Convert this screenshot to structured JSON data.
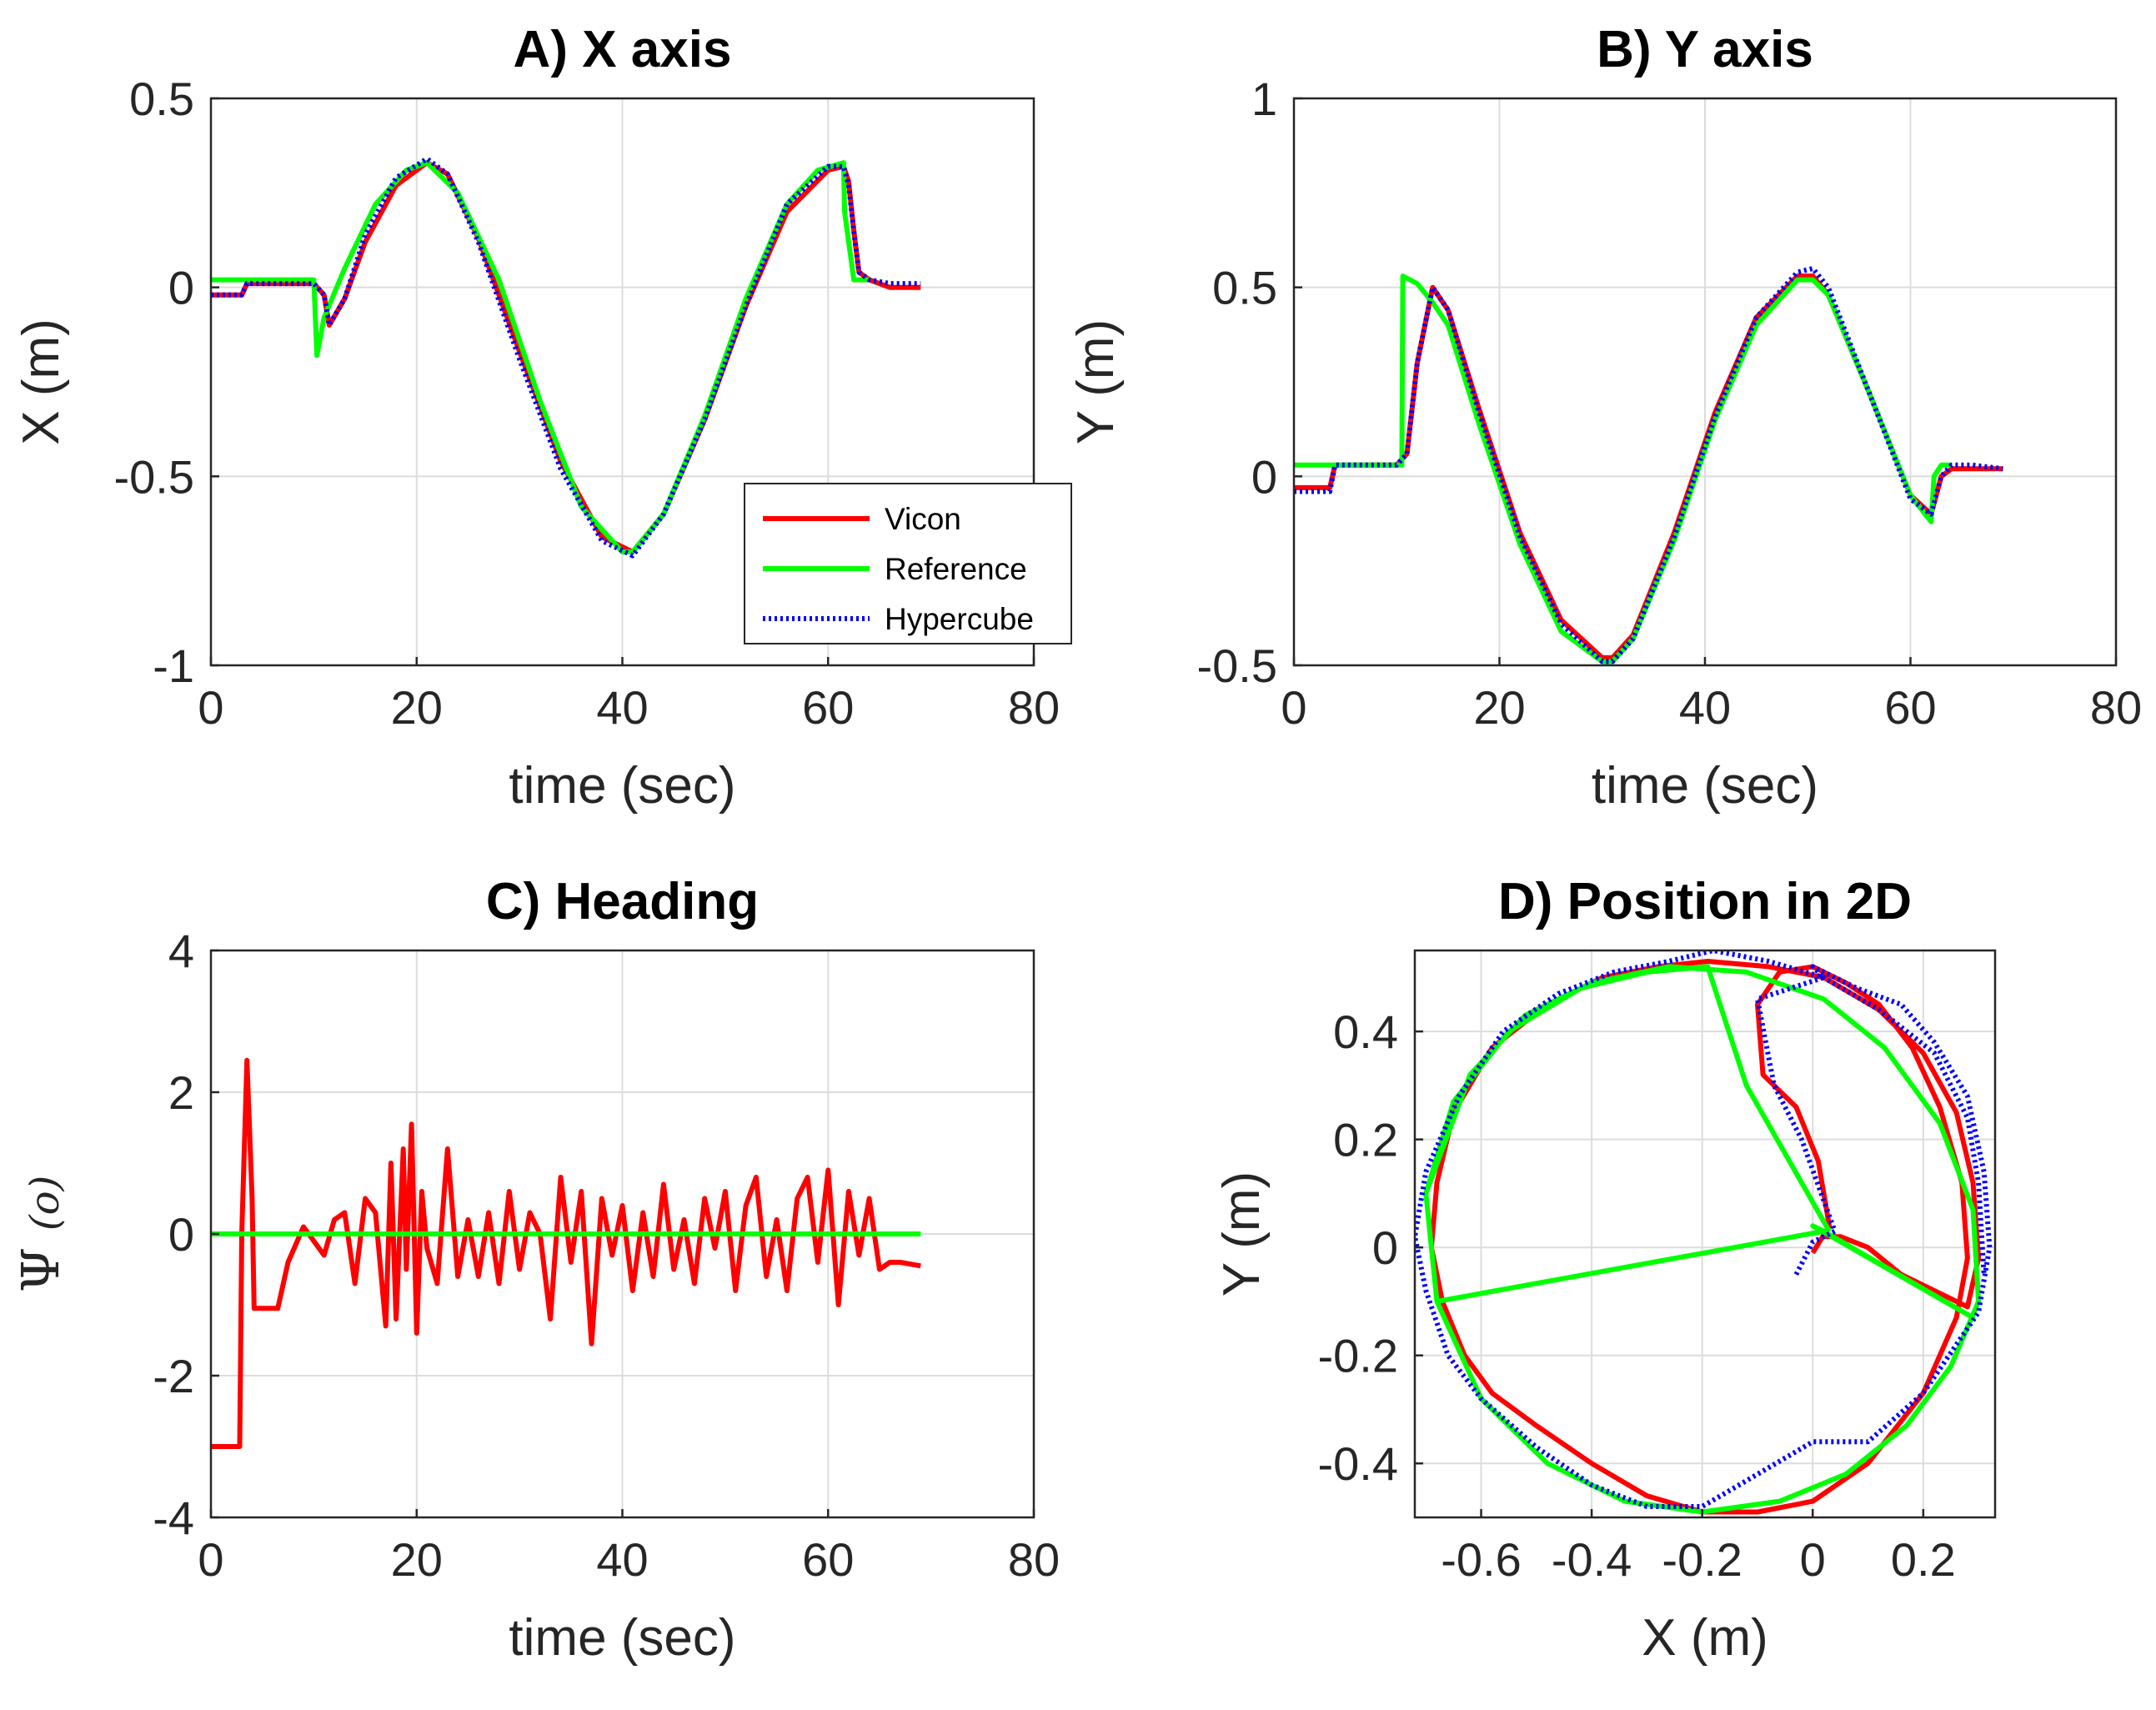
{
  "chart_data": [
    {
      "type": "line",
      "title": "A) X axis",
      "xlabel": "time (sec)",
      "ylabel": "X (m)",
      "xlim": [
        0,
        80
      ],
      "ylim": [
        -1,
        0.5
      ],
      "xticks": [
        0,
        20,
        40,
        60,
        80
      ],
      "yticks": [
        -1,
        -0.5,
        0,
        0.5
      ],
      "xtick_labels": [
        "0",
        "20",
        "40",
        "60",
        "80"
      ],
      "ytick_labels": [
        "-1",
        "-0.5",
        "0",
        "0.5"
      ],
      "grid": true,
      "legend": {
        "position": "bottom-right",
        "entries": [
          "Vicon",
          "Reference",
          "Hypercube"
        ]
      },
      "series": [
        {
          "name": "Vicon",
          "color": "#ff0000",
          "style": "solid",
          "x": [
            0,
            3,
            3.5,
            10,
            11,
            11.5,
            13,
            15,
            18,
            21,
            23,
            26,
            30,
            34,
            38,
            41,
            44,
            48,
            52,
            56,
            60,
            61.5,
            62,
            62.5,
            63,
            64,
            66,
            69
          ],
          "y": [
            -0.02,
            -0.02,
            0.01,
            0.01,
            -0.02,
            -0.1,
            -0.03,
            0.12,
            0.27,
            0.33,
            0.3,
            0.13,
            -0.17,
            -0.46,
            -0.66,
            -0.7,
            -0.6,
            -0.35,
            -0.05,
            0.2,
            0.31,
            0.32,
            0.28,
            0.15,
            0.04,
            0.02,
            0.0,
            0.0
          ]
        },
        {
          "name": "Reference",
          "color": "#00ff00",
          "style": "solid",
          "x": [
            0,
            10,
            10.3,
            11,
            13,
            16,
            19,
            21,
            24,
            28,
            32,
            36,
            40,
            41,
            44,
            48,
            52,
            56,
            59,
            61.5,
            61.6,
            62.5,
            63,
            64
          ],
          "y": [
            0.02,
            0.02,
            -0.18,
            -0.08,
            0.05,
            0.22,
            0.31,
            0.33,
            0.25,
            0.02,
            -0.3,
            -0.58,
            -0.7,
            -0.7,
            -0.6,
            -0.34,
            -0.03,
            0.22,
            0.31,
            0.33,
            0.2,
            0.02,
            0.02,
            0.02
          ]
        },
        {
          "name": "Hypercube",
          "color": "#0000ff",
          "style": "dotted",
          "x": [
            0,
            3,
            3.5,
            10,
            11,
            11.5,
            13,
            15,
            18,
            21,
            23,
            26,
            30,
            34,
            38,
            41,
            44,
            48,
            52,
            56,
            60,
            61.5,
            62,
            62.5,
            63,
            64,
            66,
            69
          ],
          "y": [
            -0.02,
            -0.02,
            0.01,
            0.01,
            -0.02,
            -0.1,
            -0.03,
            0.14,
            0.29,
            0.34,
            0.3,
            0.12,
            -0.19,
            -0.48,
            -0.67,
            -0.71,
            -0.6,
            -0.35,
            -0.05,
            0.22,
            0.32,
            0.32,
            0.27,
            0.15,
            0.04,
            0.02,
            0.01,
            0.01
          ]
        }
      ]
    },
    {
      "type": "line",
      "title": "B) Y axis",
      "xlabel": "time (sec)",
      "ylabel": "Y (m)",
      "xlim": [
        0,
        80
      ],
      "ylim": [
        -0.5,
        1
      ],
      "xticks": [
        0,
        20,
        40,
        60,
        80
      ],
      "yticks": [
        -0.5,
        0,
        0.5,
        1
      ],
      "xtick_labels": [
        "0",
        "20",
        "40",
        "60",
        "80"
      ],
      "ytick_labels": [
        "-0.5",
        "0",
        "0.5",
        "1"
      ],
      "grid": true,
      "series": [
        {
          "name": "Vicon",
          "color": "#ff0000",
          "style": "solid",
          "x": [
            0,
            3.5,
            4,
            10,
            11,
            12,
            13.5,
            15,
            18,
            22,
            26,
            30,
            31,
            33,
            37,
            41,
            45,
            49,
            50.5,
            52,
            56,
            60,
            62,
            63,
            64,
            66,
            69
          ],
          "y": [
            -0.03,
            -0.03,
            0.03,
            0.03,
            0.06,
            0.3,
            0.5,
            0.44,
            0.18,
            -0.15,
            -0.38,
            -0.48,
            -0.48,
            -0.42,
            -0.15,
            0.17,
            0.42,
            0.53,
            0.53,
            0.48,
            0.22,
            -0.05,
            -0.1,
            0.0,
            0.02,
            0.02,
            0.02
          ]
        },
        {
          "name": "Reference",
          "color": "#00ff00",
          "style": "solid",
          "x": [
            0,
            10.5,
            10.6,
            12,
            13.5,
            15,
            18,
            22,
            26,
            30,
            31,
            33,
            37,
            41,
            45,
            49,
            50.5,
            52,
            56,
            60,
            62,
            62.3,
            63,
            64
          ],
          "y": [
            0.03,
            0.03,
            0.53,
            0.51,
            0.46,
            0.4,
            0.14,
            -0.18,
            -0.41,
            -0.49,
            -0.49,
            -0.43,
            -0.17,
            0.15,
            0.4,
            0.52,
            0.52,
            0.48,
            0.22,
            -0.05,
            -0.12,
            0.0,
            0.03,
            0.03
          ]
        },
        {
          "name": "Hypercube",
          "color": "#0000ff",
          "style": "dotted",
          "x": [
            0,
            3.5,
            4,
            10,
            11,
            12,
            13.5,
            15,
            18,
            22,
            26,
            30,
            31,
            33,
            37,
            41,
            45,
            49,
            50.5,
            52,
            56,
            60,
            62,
            63,
            64,
            66,
            69
          ],
          "y": [
            -0.04,
            -0.04,
            0.03,
            0.03,
            0.06,
            0.3,
            0.5,
            0.44,
            0.17,
            -0.16,
            -0.39,
            -0.49,
            -0.49,
            -0.43,
            -0.16,
            0.16,
            0.42,
            0.54,
            0.55,
            0.5,
            0.22,
            -0.06,
            -0.1,
            0.0,
            0.03,
            0.03,
            0.02
          ]
        }
      ]
    },
    {
      "type": "line",
      "title": "C) Heading",
      "xlabel": "time (sec)",
      "ylabel_symbol": "Ψ",
      "ylabel_unit": "(o)",
      "xlim": [
        0,
        80
      ],
      "ylim": [
        -4,
        4
      ],
      "xticks": [
        0,
        20,
        40,
        60,
        80
      ],
      "yticks": [
        -4,
        -2,
        0,
        2,
        4
      ],
      "xtick_labels": [
        "0",
        "20",
        "40",
        "60",
        "80"
      ],
      "ytick_labels": [
        "-4",
        "-2",
        "0",
        "2",
        "4"
      ],
      "grid": true,
      "series": [
        {
          "name": "Vicon",
          "color": "#ff0000",
          "style": "solid",
          "x": [
            0,
            2.8,
            3.0,
            3.5,
            4.0,
            4.2,
            6.5,
            7.5,
            9,
            10,
            11,
            12,
            13,
            14,
            15,
            16,
            17,
            17.5,
            18,
            18.7,
            19,
            19.5,
            20,
            20.5,
            21,
            22,
            23,
            24,
            25,
            26,
            27,
            28,
            29,
            30,
            31,
            32,
            33,
            34,
            35,
            36,
            37,
            38,
            39,
            40,
            41,
            42,
            43,
            44,
            45,
            46,
            47,
            48,
            49,
            50,
            51,
            52,
            53,
            54,
            55,
            56,
            57,
            58,
            59,
            60,
            61,
            62,
            63,
            64,
            65,
            66,
            67,
            69
          ],
          "y": [
            -3,
            -3,
            0.0,
            2.45,
            0.5,
            -1.05,
            -1.05,
            -0.4,
            0.1,
            -0.1,
            -0.3,
            0.2,
            0.3,
            -0.7,
            0.5,
            0.3,
            -1.3,
            1.0,
            -1.2,
            1.2,
            -0.5,
            1.55,
            -1.4,
            0.6,
            -0.2,
            -0.7,
            1.2,
            -0.6,
            0.2,
            -0.6,
            0.3,
            -0.7,
            0.6,
            -0.5,
            0.3,
            0.0,
            -1.2,
            0.8,
            -0.4,
            0.6,
            -1.55,
            0.5,
            -0.3,
            0.4,
            -0.8,
            0.3,
            -0.6,
            0.7,
            -0.5,
            0.2,
            -0.7,
            0.5,
            -0.2,
            0.6,
            -0.8,
            0.4,
            0.8,
            -0.6,
            0.2,
            -0.8,
            0.5,
            0.8,
            -0.4,
            0.9,
            -1.0,
            0.6,
            -0.3,
            0.5,
            -0.5,
            -0.4,
            -0.4,
            -0.45
          ]
        },
        {
          "name": "Reference",
          "color": "#00ff00",
          "style": "solid",
          "x": [
            0,
            69
          ],
          "y": [
            0,
            0
          ]
        }
      ]
    },
    {
      "type": "line",
      "title": "D) Position in 2D",
      "xlabel": "X (m)",
      "ylabel": "Y (m)",
      "xlim": [
        -0.72,
        0.33
      ],
      "ylim": [
        -0.5,
        0.55
      ],
      "xticks": [
        -0.6,
        -0.4,
        -0.2,
        0,
        0.2
      ],
      "yticks": [
        -0.4,
        -0.2,
        0,
        0.2,
        0.4
      ],
      "xtick_labels": [
        "-0.6",
        "-0.4",
        "-0.2",
        "0",
        "0.2"
      ],
      "ytick_labels": [
        "-0.4",
        "-0.2",
        "0",
        "0.2",
        "0.4"
      ],
      "grid": true,
      "series": [
        {
          "name": "Vicon",
          "color": "#ff0000",
          "style": "solid",
          "x": [
            0.0,
            0.03,
            0.01,
            -0.03,
            -0.09,
            -0.1,
            -0.06,
            0.0,
            0.06,
            0.12,
            0.18,
            0.23,
            0.27,
            0.28,
            0.26,
            0.2,
            0.1,
            0.0,
            -0.1,
            -0.2,
            -0.3,
            -0.4,
            -0.5,
            -0.58,
            -0.63,
            -0.67,
            -0.69,
            -0.68,
            -0.65,
            -0.58,
            -0.48,
            -0.38,
            -0.28,
            -0.19,
            -0.08,
            0.02,
            0.12,
            0.2,
            0.26,
            0.29,
            0.3,
            0.28,
            0.16,
            0.1,
            0.05,
            0.02
          ],
          "x_note": "",
          "y": [
            -0.01,
            0.04,
            0.16,
            0.26,
            0.32,
            0.45,
            0.51,
            0.52,
            0.49,
            0.45,
            0.37,
            0.26,
            0.12,
            -0.02,
            -0.13,
            -0.27,
            -0.4,
            -0.47,
            -0.49,
            -0.49,
            -0.46,
            -0.4,
            -0.33,
            -0.27,
            -0.2,
            -0.1,
            0.0,
            0.12,
            0.25,
            0.37,
            0.45,
            0.5,
            0.52,
            0.53,
            0.52,
            0.5,
            0.44,
            0.36,
            0.25,
            0.12,
            -0.02,
            -0.11,
            -0.05,
            0.0,
            0.02,
            0.02
          ]
        },
        {
          "name": "Reference",
          "color": "#00ff00",
          "style": "solid",
          "x": [
            0.03,
            -0.12,
            -0.19,
            -0.3,
            -0.42,
            -0.55,
            -0.65,
            -0.7,
            -0.68,
            -0.6,
            -0.48,
            -0.34,
            -0.2,
            -0.06,
            0.06,
            0.17,
            0.25,
            0.3,
            0.29,
            0.23,
            0.13,
            0.02,
            -0.12,
            -0.26,
            -0.4,
            -0.52,
            -0.62,
            -0.7,
            -0.68,
            0.02,
            0.29,
            0.0,
            0.02
          ],
          "y": [
            0.03,
            0.3,
            0.52,
            0.51,
            0.48,
            0.4,
            0.27,
            0.1,
            -0.1,
            -0.28,
            -0.4,
            -0.47,
            -0.49,
            -0.47,
            -0.42,
            -0.33,
            -0.22,
            -0.1,
            0.07,
            0.23,
            0.37,
            0.46,
            0.51,
            0.52,
            0.49,
            0.43,
            0.32,
            0.1,
            -0.1,
            0.03,
            -0.13,
            0.04,
            0.03
          ]
        },
        {
          "name": "Hypercube",
          "color": "#0000ff",
          "style": "dotted",
          "x": [
            -0.03,
            0.0,
            0.04,
            -0.02,
            -0.07,
            -0.1,
            0.02,
            0.0,
            0.08,
            0.16,
            0.22,
            0.28,
            0.31,
            0.32,
            0.3,
            0.2,
            0.1,
            0.0,
            -0.1,
            -0.2,
            -0.3,
            -0.4,
            -0.5,
            -0.6,
            -0.66,
            -0.7,
            -0.72,
            -0.7,
            -0.64,
            -0.56,
            -0.46,
            -0.36,
            -0.26,
            -0.18,
            -0.08,
            0.02,
            0.12,
            0.22,
            0.28,
            0.3,
            0.31
          ],
          "y": [
            -0.05,
            0.01,
            0.03,
            0.2,
            0.3,
            0.46,
            0.5,
            0.52,
            0.48,
            0.45,
            0.38,
            0.28,
            0.14,
            0.0,
            -0.12,
            -0.27,
            -0.36,
            -0.36,
            -0.42,
            -0.48,
            -0.48,
            -0.44,
            -0.37,
            -0.28,
            -0.2,
            -0.08,
            0.02,
            0.14,
            0.28,
            0.4,
            0.47,
            0.51,
            0.53,
            0.55,
            0.53,
            0.5,
            0.44,
            0.36,
            0.24,
            0.12,
            -0.05
          ]
        }
      ]
    }
  ]
}
